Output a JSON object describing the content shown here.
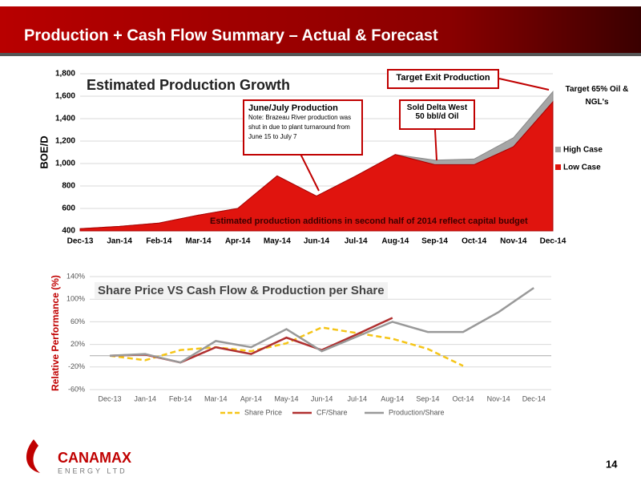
{
  "header": {
    "title": "Production + Cash Flow Summary – Actual & Forecast"
  },
  "footer": {
    "page": "14"
  },
  "logo": {
    "name": "CANAMAX",
    "tagline": "ENERGY LTD"
  },
  "chart_data": [
    {
      "type": "area",
      "title": "Estimated Production Growth",
      "y_label": "BOE/D",
      "categories": [
        "Dec-13",
        "Jan-14",
        "Feb-14",
        "Mar-14",
        "Apr-14",
        "May-14",
        "Jun-14",
        "Jul-14",
        "Aug-14",
        "Sep-14",
        "Oct-14",
        "Nov-14",
        "Dec-14"
      ],
      "series": [
        {
          "name": "High Case",
          "color": "#a6a6a6",
          "values": [
            420,
            440,
            470,
            540,
            600,
            890,
            710,
            890,
            1080,
            1030,
            1040,
            1230,
            1640
          ]
        },
        {
          "name": "Low Case",
          "color": "#e0140e",
          "values": [
            420,
            440,
            470,
            540,
            600,
            890,
            710,
            890,
            1080,
            990,
            990,
            1150,
            1550
          ]
        }
      ],
      "ylim": [
        400,
        1800
      ],
      "yticks": [
        400,
        600,
        800,
        {
          "value": 1000,
          "label": "1,000"
        },
        {
          "value": 1200,
          "label": "1,200"
        },
        {
          "value": 1400,
          "label": "1,400"
        },
        {
          "value": 1600,
          "label": "1,600"
        },
        {
          "value": 1800,
          "label": "1,800"
        }
      ],
      "grid": true,
      "annotations": [
        "June/July Production",
        "Note: Brazeau River production was shut in due to plant turnaround from June 15  to July 7",
        "Sold Delta West 50 bbl/d Oil",
        "Target Exit Production",
        "Target 65% Oil & NGL's",
        "Estimated production additions in second half of 2014 reflect capital budget"
      ]
    },
    {
      "type": "line",
      "title": "Share Price VS Cash Flow & Production per Share",
      "y_label": "Relative Performance (%)",
      "categories": [
        "Dec-13",
        "Jan-14",
        "Feb-14",
        "Mar-14",
        "Apr-14",
        "May-14",
        "Jun-14",
        "Jul-14",
        "Aug-14",
        "Sep-14",
        "Oct-14",
        "Nov-14",
        "Dec-14"
      ],
      "series": [
        {
          "name": "Share Price",
          "color": "#f5c518",
          "dashed": true,
          "values": [
            0,
            -8,
            10,
            15,
            8,
            22,
            50,
            40,
            30,
            12,
            -18,
            null,
            null
          ]
        },
        {
          "name": "CF/Share",
          "color": "#b03030",
          "values": [
            0,
            2,
            -12,
            15,
            3,
            32,
            10,
            38,
            67,
            null,
            null,
            null,
            null
          ]
        },
        {
          "name": "Production/Share",
          "color": "#999999",
          "values": [
            0,
            3,
            -12,
            26,
            15,
            47,
            8,
            34,
            60,
            42,
            42,
            77,
            120
          ]
        }
      ],
      "ylim": [
        -60,
        140
      ],
      "yticks": [
        {
          "value": -60,
          "label": "-60%"
        },
        {
          "value": -20,
          "label": "-20%"
        },
        {
          "value": 20,
          "label": "20%"
        },
        {
          "value": 60,
          "label": "60%"
        },
        {
          "value": 100,
          "label": "100%"
        },
        {
          "value": 140,
          "label": "140%"
        }
      ],
      "grid": true
    }
  ]
}
